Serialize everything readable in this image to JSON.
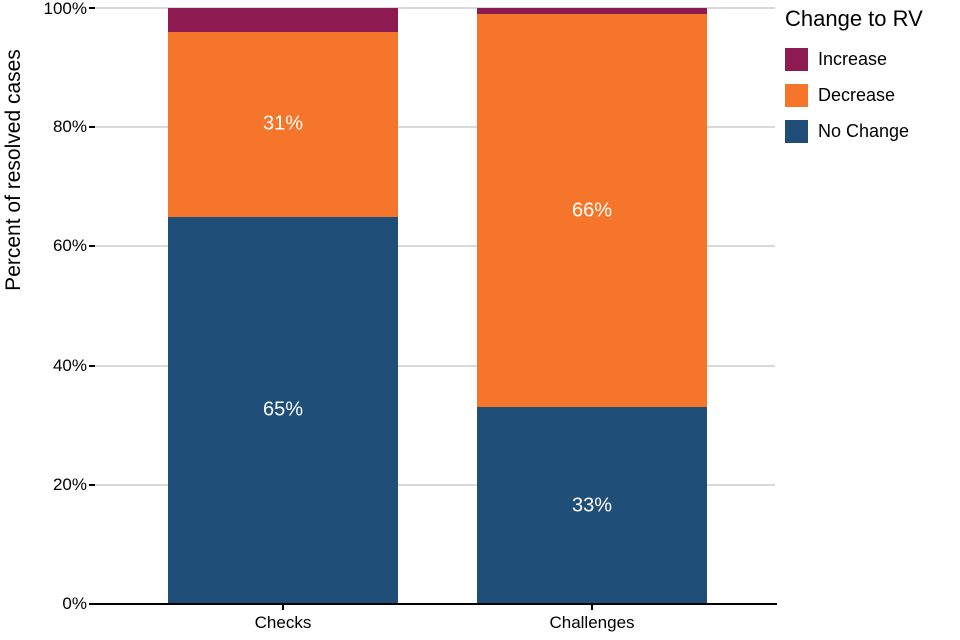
{
  "chart_data": {
    "type": "bar",
    "stacked": true,
    "orientation": "vertical",
    "title": "",
    "xlabel": "",
    "ylabel": "Percent of resolved cases",
    "ylim": [
      0,
      100
    ],
    "yticks": [
      {
        "value": 0,
        "label": "0%"
      },
      {
        "value": 20,
        "label": "20%"
      },
      {
        "value": 40,
        "label": "40%"
      },
      {
        "value": 60,
        "label": "60%"
      },
      {
        "value": 80,
        "label": "80%"
      },
      {
        "value": 100,
        "label": "100%"
      }
    ],
    "categories": [
      "Checks",
      "Challenges"
    ],
    "series": [
      {
        "name": "No Change",
        "color": "#1f4e79",
        "values": [
          65,
          33
        ],
        "labels": [
          "65%",
          "33%"
        ]
      },
      {
        "name": "Decrease",
        "color": "#f5762a",
        "values": [
          31,
          66
        ],
        "labels": [
          "31%",
          "66%"
        ]
      },
      {
        "name": "Increase",
        "color": "#8e1a52",
        "values": [
          4,
          1
        ],
        "labels": [
          "",
          ""
        ]
      }
    ],
    "legend": {
      "title": "Change to RV",
      "position": "top-right",
      "items_top_to_bottom": [
        "Increase",
        "Decrease",
        "No Change"
      ]
    },
    "grid": "horizontal-light-gray",
    "bar_label_color": "#ffffff"
  }
}
